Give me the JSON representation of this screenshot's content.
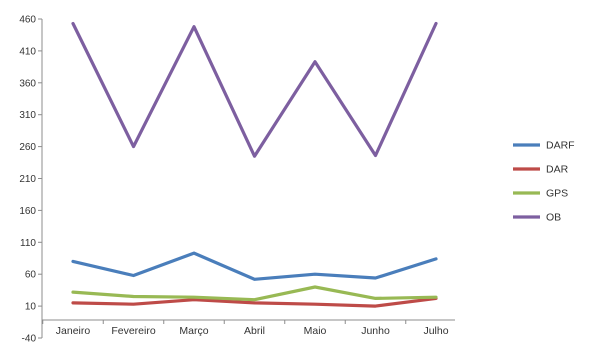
{
  "chart_data": {
    "type": "line",
    "categories": [
      "Janeiro",
      "Fevereiro",
      "Março",
      "Abril",
      "Maio",
      "Junho",
      "Julho"
    ],
    "y_ticks": [
      -40,
      10,
      60,
      110,
      160,
      210,
      260,
      310,
      360,
      410,
      460
    ],
    "ylim": [
      -40,
      460
    ],
    "grid": false,
    "legend_position": "right",
    "series": [
      {
        "name": "DARF",
        "color": "#4a7ebb",
        "values": [
          80,
          58,
          93,
          52,
          60,
          54,
          84
        ]
      },
      {
        "name": "DAR",
        "color": "#be4b48",
        "values": [
          15,
          13,
          20,
          15,
          13,
          10,
          22
        ]
      },
      {
        "name": "GPS",
        "color": "#98b954",
        "values": [
          32,
          25,
          24,
          20,
          40,
          22,
          24
        ]
      },
      {
        "name": "OB",
        "color": "#7d5fa0",
        "values": [
          453,
          260,
          448,
          245,
          393,
          246,
          453
        ]
      }
    ]
  }
}
